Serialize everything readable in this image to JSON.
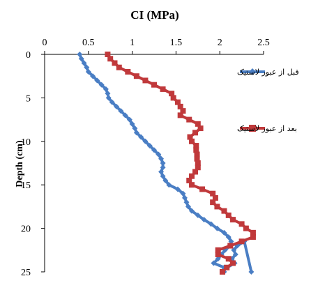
{
  "chart_data": {
    "type": "line",
    "title": "CI (MPa)",
    "xlabel": "CI (MPa)",
    "ylabel": "Depth (cm)",
    "xlim": [
      0,
      2.5
    ],
    "ylim": [
      0,
      25
    ],
    "x_ticks": [
      "0",
      "0.5",
      "1",
      "1.5",
      "2",
      "2.5"
    ],
    "y_ticks": [
      "0",
      "5",
      "10",
      "15",
      "20",
      "25"
    ],
    "x_axis_position": "top",
    "y_axis_inverted": true,
    "grid": false,
    "legend_position": "right",
    "series": [
      {
        "name": "قبل از عبور لاستیک",
        "color": "#4a7ec4",
        "marker": "diamond",
        "points": [
          [
            0.4,
            0
          ],
          [
            0.42,
            0.5
          ],
          [
            0.45,
            1
          ],
          [
            0.48,
            1.5
          ],
          [
            0.5,
            2
          ],
          [
            0.55,
            2.5
          ],
          [
            0.6,
            3
          ],
          [
            0.65,
            3.5
          ],
          [
            0.7,
            4
          ],
          [
            0.72,
            4.5
          ],
          [
            0.73,
            5
          ],
          [
            0.77,
            5.5
          ],
          [
            0.82,
            6
          ],
          [
            0.87,
            6.5
          ],
          [
            0.92,
            7
          ],
          [
            0.97,
            7.5
          ],
          [
            1.0,
            8
          ],
          [
            1.03,
            8.5
          ],
          [
            1.05,
            9
          ],
          [
            1.1,
            9.5
          ],
          [
            1.15,
            10
          ],
          [
            1.2,
            10.5
          ],
          [
            1.25,
            11
          ],
          [
            1.3,
            11.5
          ],
          [
            1.33,
            12
          ],
          [
            1.35,
            12.5
          ],
          [
            1.35,
            13
          ],
          [
            1.33,
            13.5
          ],
          [
            1.35,
            14
          ],
          [
            1.38,
            14.5
          ],
          [
            1.42,
            15
          ],
          [
            1.52,
            15.5
          ],
          [
            1.58,
            16
          ],
          [
            1.6,
            16.5
          ],
          [
            1.62,
            17
          ],
          [
            1.64,
            17.5
          ],
          [
            1.68,
            18
          ],
          [
            1.75,
            18.5
          ],
          [
            1.82,
            19
          ],
          [
            1.9,
            19.5
          ],
          [
            1.97,
            20
          ],
          [
            2.05,
            20.5
          ],
          [
            2.1,
            21
          ],
          [
            2.13,
            21.5
          ],
          [
            2.12,
            22
          ],
          [
            2.06,
            22.5
          ],
          [
            2.02,
            23
          ],
          [
            1.98,
            23.5
          ],
          [
            1.93,
            24
          ],
          [
            2.05,
            24.5
          ],
          [
            2.05,
            25
          ],
          [
            2.05,
            24.7
          ],
          [
            2.17,
            24
          ],
          [
            2.14,
            23.5
          ],
          [
            2.18,
            23
          ],
          [
            2.16,
            22.5
          ],
          [
            2.2,
            22
          ],
          [
            2.28,
            21.5
          ],
          [
            2.36,
            25
          ]
        ]
      },
      {
        "name": "بعد از عبور لاستیک",
        "color": "#c0393b",
        "marker": "square",
        "points": [
          [
            0.72,
            0
          ],
          [
            0.75,
            0.5
          ],
          [
            0.8,
            1
          ],
          [
            0.85,
            1.5
          ],
          [
            0.95,
            2
          ],
          [
            1.05,
            2.5
          ],
          [
            1.15,
            3
          ],
          [
            1.25,
            3.5
          ],
          [
            1.35,
            4
          ],
          [
            1.45,
            4.5
          ],
          [
            1.47,
            5
          ],
          [
            1.52,
            5.5
          ],
          [
            1.55,
            6
          ],
          [
            1.58,
            6.5
          ],
          [
            1.55,
            7
          ],
          [
            1.65,
            7.5
          ],
          [
            1.75,
            8
          ],
          [
            1.78,
            8.5
          ],
          [
            1.72,
            9
          ],
          [
            1.66,
            9.5
          ],
          [
            1.68,
            10
          ],
          [
            1.73,
            10.5
          ],
          [
            1.73,
            11
          ],
          [
            1.74,
            11.5
          ],
          [
            1.74,
            12
          ],
          [
            1.75,
            12.5
          ],
          [
            1.75,
            13
          ],
          [
            1.72,
            13.5
          ],
          [
            1.68,
            14
          ],
          [
            1.65,
            14.5
          ],
          [
            1.68,
            15
          ],
          [
            1.8,
            15.5
          ],
          [
            1.92,
            16
          ],
          [
            1.95,
            16.5
          ],
          [
            1.92,
            17
          ],
          [
            1.97,
            17.5
          ],
          [
            2.05,
            18
          ],
          [
            2.1,
            18.5
          ],
          [
            2.15,
            19
          ],
          [
            2.25,
            19.5
          ],
          [
            2.3,
            20
          ],
          [
            2.38,
            20.5
          ],
          [
            2.38,
            21
          ],
          [
            2.25,
            21.5
          ],
          [
            2.12,
            22
          ],
          [
            1.98,
            22.5
          ],
          [
            1.98,
            23
          ],
          [
            2.1,
            23.5
          ],
          [
            2.15,
            24
          ],
          [
            2.08,
            24.5
          ],
          [
            2.03,
            25
          ]
        ]
      }
    ]
  }
}
